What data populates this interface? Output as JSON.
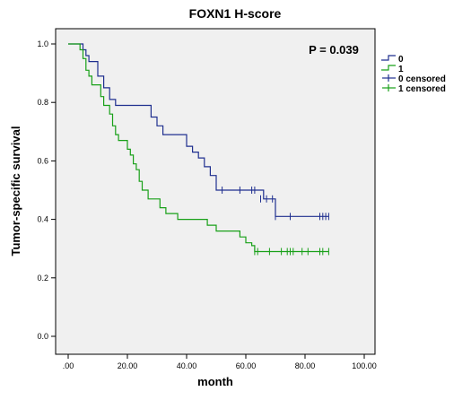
{
  "chart_data": {
    "type": "line",
    "title": "FOXN1 H-score",
    "xlabel": "month",
    "ylabel": "Tumor-specific survival",
    "xlim": [
      0,
      100
    ],
    "ylim": [
      0,
      1.0
    ],
    "xticks": [
      ".00",
      "20.00",
      "40.00",
      "60.00",
      "80.00",
      "100.00"
    ],
    "yticks": [
      "0.0",
      "0.2",
      "0.4",
      "0.6",
      "0.8",
      "1.0"
    ],
    "annotation": "P = 0.039",
    "grid": false,
    "legend_position": "right",
    "legend": [
      {
        "label": "0",
        "color": "#1f2f8f",
        "kind": "line"
      },
      {
        "label": "1",
        "color": "#18a018",
        "kind": "line"
      },
      {
        "label": "0  censored",
        "color": "#1f2f8f",
        "kind": "censor"
      },
      {
        "label": "1  censored",
        "color": "#18a018",
        "kind": "censor"
      }
    ],
    "series": [
      {
        "name": "0",
        "color": "#1f2f8f",
        "steps": [
          [
            0,
            1.0
          ],
          [
            5,
            0.98
          ],
          [
            6,
            0.96
          ],
          [
            7,
            0.94
          ],
          [
            10,
            0.89
          ],
          [
            12,
            0.85
          ],
          [
            14,
            0.81
          ],
          [
            16,
            0.79
          ],
          [
            28,
            0.75
          ],
          [
            30,
            0.72
          ],
          [
            32,
            0.69
          ],
          [
            40,
            0.65
          ],
          [
            42,
            0.63
          ],
          [
            44,
            0.61
          ],
          [
            46,
            0.58
          ],
          [
            48,
            0.55
          ],
          [
            50,
            0.5
          ],
          [
            66,
            0.47
          ],
          [
            70,
            0.41
          ],
          [
            88,
            0.41
          ]
        ],
        "censored": [
          [
            52,
            0.5
          ],
          [
            58,
            0.5
          ],
          [
            62,
            0.5
          ],
          [
            63,
            0.5
          ],
          [
            65,
            0.47
          ],
          [
            67,
            0.47
          ],
          [
            69,
            0.47
          ],
          [
            70,
            0.41
          ],
          [
            75,
            0.41
          ],
          [
            85,
            0.41
          ],
          [
            86,
            0.41
          ],
          [
            87,
            0.41
          ],
          [
            88,
            0.41
          ]
        ]
      },
      {
        "name": "1",
        "color": "#18a018",
        "steps": [
          [
            0,
            1.0
          ],
          [
            4,
            0.98
          ],
          [
            5,
            0.95
          ],
          [
            6,
            0.91
          ],
          [
            7,
            0.89
          ],
          [
            8,
            0.86
          ],
          [
            11,
            0.82
          ],
          [
            12,
            0.79
          ],
          [
            14,
            0.76
          ],
          [
            15,
            0.72
          ],
          [
            16,
            0.69
          ],
          [
            17,
            0.67
          ],
          [
            20,
            0.64
          ],
          [
            21,
            0.62
          ],
          [
            22,
            0.59
          ],
          [
            23,
            0.57
          ],
          [
            24,
            0.53
          ],
          [
            25,
            0.5
          ],
          [
            27,
            0.47
          ],
          [
            31,
            0.44
          ],
          [
            33,
            0.42
          ],
          [
            37,
            0.4
          ],
          [
            47,
            0.38
          ],
          [
            50,
            0.36
          ],
          [
            58,
            0.34
          ],
          [
            60,
            0.32
          ],
          [
            62,
            0.31
          ],
          [
            63,
            0.29
          ],
          [
            88,
            0.29
          ]
        ],
        "censored": [
          [
            63,
            0.29
          ],
          [
            64,
            0.29
          ],
          [
            68,
            0.29
          ],
          [
            72,
            0.29
          ],
          [
            74,
            0.29
          ],
          [
            75,
            0.29
          ],
          [
            76,
            0.29
          ],
          [
            79,
            0.29
          ],
          [
            81,
            0.29
          ],
          [
            85,
            0.29
          ],
          [
            86,
            0.29
          ],
          [
            88,
            0.29
          ]
        ]
      }
    ]
  }
}
